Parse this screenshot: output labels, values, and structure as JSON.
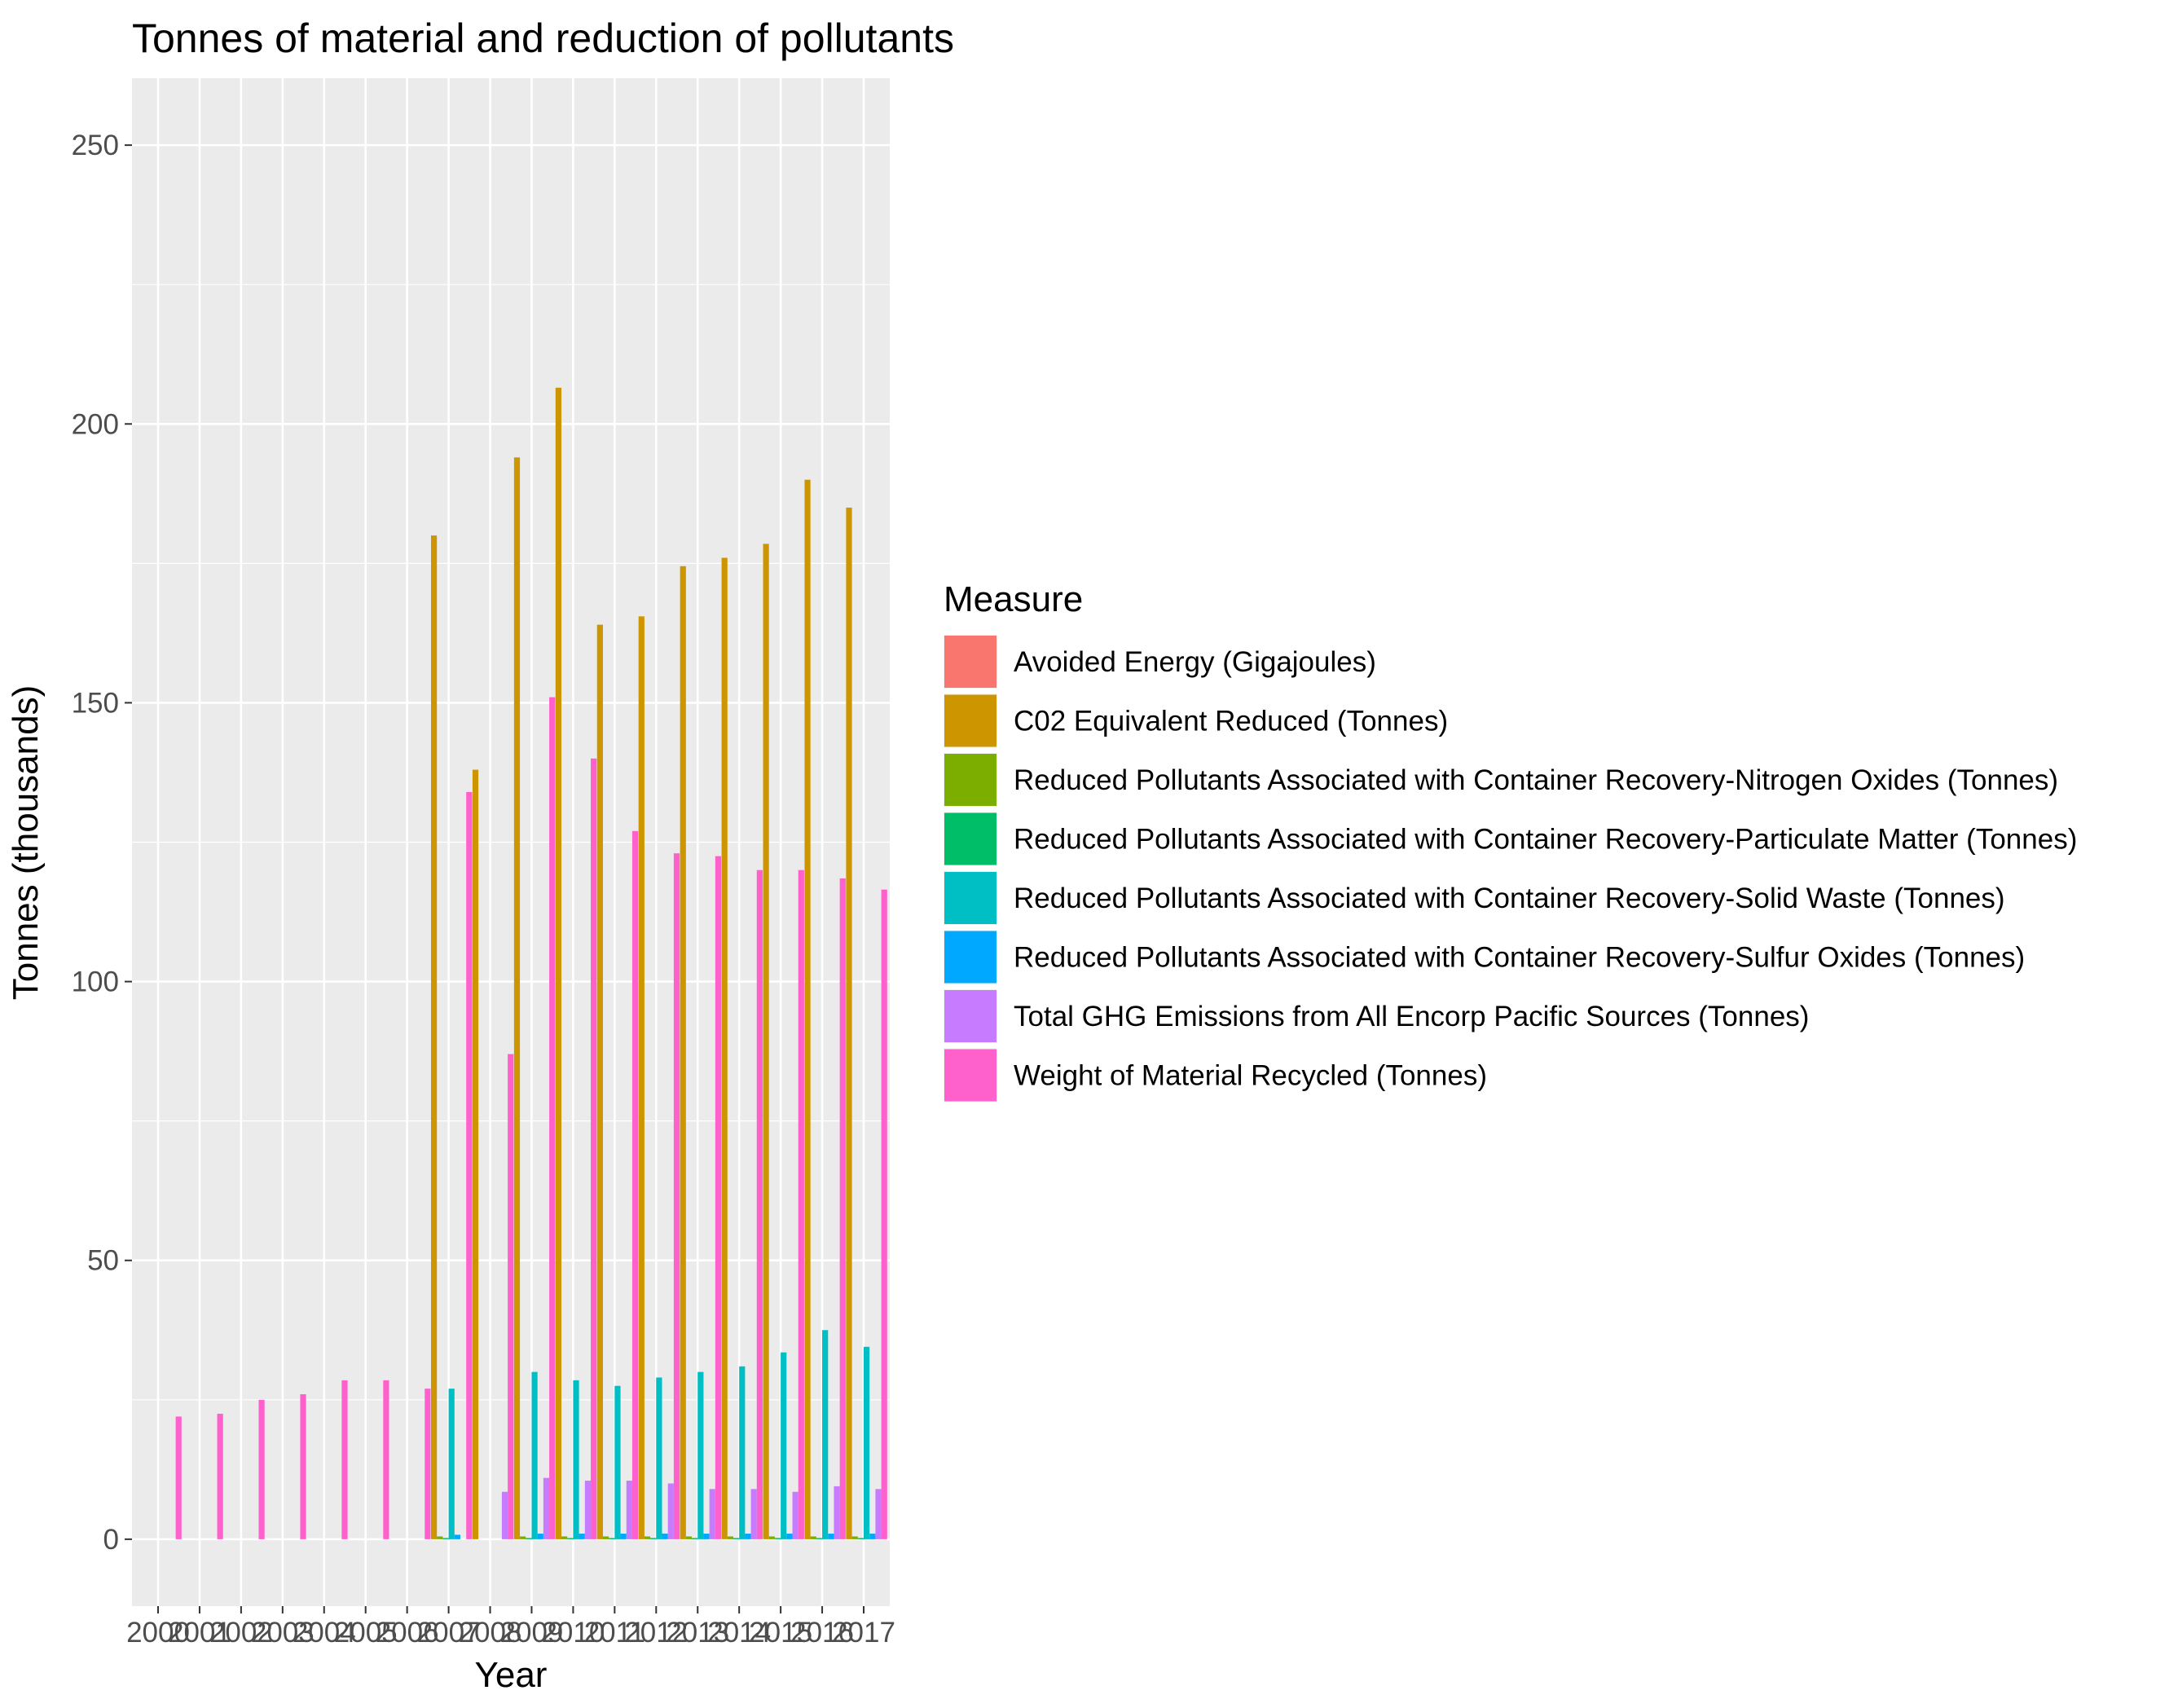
{
  "chart_data": {
    "type": "bar",
    "title": "Tonnes of material and reduction of pollutants",
    "xlabel": "Year",
    "ylabel": "Tonnes (thousands)",
    "ylim": [
      -12,
      262
    ],
    "yticks": [
      0,
      50,
      100,
      150,
      200,
      250
    ],
    "categories": [
      "2000",
      "2001",
      "2002",
      "2003",
      "2004",
      "2005",
      "2006",
      "2007",
      "2008",
      "2009",
      "2010",
      "2011",
      "2012",
      "2013",
      "2014",
      "2015",
      "2016",
      "2017"
    ],
    "grid": true,
    "legend_title": "Measure",
    "legend_position": "right",
    "series": [
      {
        "name": "Avoided Energy (Gigajoules)",
        "color": "#F8766D",
        "values": [
          null,
          null,
          null,
          null,
          null,
          null,
          null,
          null,
          null,
          null,
          null,
          null,
          null,
          null,
          null,
          null,
          null,
          null
        ]
      },
      {
        "name": "C02 Equivalent Reduced (Tonnes)",
        "color": "#CD9600",
        "values": [
          null,
          null,
          null,
          null,
          null,
          null,
          null,
          180,
          138,
          194,
          206.5,
          164,
          165.5,
          174.5,
          176,
          178.5,
          190,
          185
        ]
      },
      {
        "name": "Reduced Pollutants Associated with Container Recovery-Nitrogen Oxides (Tonnes)",
        "color": "#7CAE00",
        "values": [
          null,
          null,
          null,
          null,
          null,
          null,
          null,
          0.5,
          null,
          0.5,
          0.5,
          0.5,
          0.5,
          0.5,
          0.5,
          0.5,
          0.5,
          0.5
        ]
      },
      {
        "name": "Reduced Pollutants Associated with Container Recovery-Particulate Matter (Tonnes)",
        "color": "#00BE67",
        "values": [
          null,
          null,
          null,
          null,
          null,
          null,
          null,
          0.2,
          null,
          0.2,
          0.2,
          0.2,
          0.2,
          0.2,
          0.2,
          0.2,
          0.2,
          0.2
        ]
      },
      {
        "name": "Reduced Pollutants Associated with Container Recovery-Solid Waste (Tonnes)",
        "color": "#00BFC4",
        "values": [
          null,
          null,
          null,
          null,
          null,
          null,
          null,
          27,
          null,
          30,
          28.5,
          27.5,
          29,
          30,
          31,
          33.5,
          37.5,
          34.5
        ]
      },
      {
        "name": "Reduced Pollutants Associated with Container Recovery-Sulfur Oxides (Tonnes)",
        "color": "#00A9FF",
        "values": [
          null,
          null,
          null,
          null,
          null,
          null,
          null,
          0.8,
          null,
          1,
          1,
          1,
          1,
          1,
          1,
          1,
          1,
          1
        ]
      },
      {
        "name": "Total GHG Emissions from All Encorp Pacific Sources (Tonnes)",
        "color": "#C77CFF",
        "values": [
          null,
          null,
          null,
          null,
          null,
          null,
          null,
          null,
          8.5,
          11,
          10.5,
          10.5,
          10,
          9,
          9,
          8.5,
          9.5,
          9
        ]
      },
      {
        "name": "Weight of Material Recycled (Tonnes)",
        "color": "#FF61CC",
        "values": [
          22,
          22.5,
          25,
          26,
          28.5,
          28.5,
          27,
          134,
          87,
          151,
          140,
          127,
          123,
          122.5,
          120,
          120,
          118.5,
          116.5
        ]
      }
    ]
  }
}
